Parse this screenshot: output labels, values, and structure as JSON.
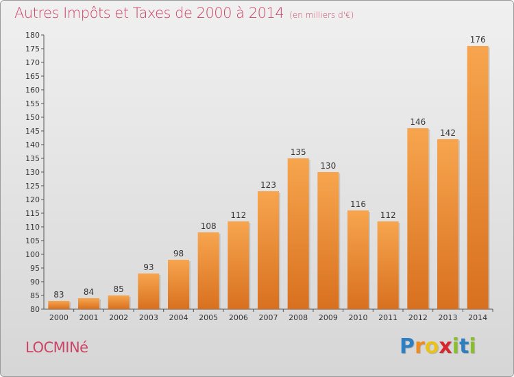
{
  "title": "Autres Impôts et Taxes de 2000 à 2014",
  "title_unit": "(en milliers d'€)",
  "commune": "LOCMINé",
  "brand": {
    "letters": [
      "P",
      "r",
      "o",
      "x",
      "i",
      "t",
      "i"
    ],
    "colors": [
      "#2e7fc1",
      "#f08a1c",
      "#e9c21a",
      "#d8262e",
      "#8bbd2f",
      "#2e7fc1",
      "#8bbd2f"
    ]
  },
  "chart_data": {
    "type": "bar",
    "categories": [
      "2000",
      "2001",
      "2002",
      "2003",
      "2004",
      "2005",
      "2006",
      "2007",
      "2008",
      "2009",
      "2010",
      "2011",
      "2012",
      "2013",
      "2014"
    ],
    "values": [
      83,
      84,
      85,
      93,
      98,
      108,
      112,
      123,
      135,
      130,
      116,
      112,
      146,
      142,
      176
    ],
    "ylim": [
      80,
      180
    ],
    "yticks": [
      80,
      85,
      90,
      95,
      100,
      105,
      110,
      115,
      120,
      125,
      130,
      135,
      140,
      145,
      150,
      155,
      160,
      165,
      170,
      175,
      180
    ],
    "grid": false,
    "bar_color_top": "#f7a54e",
    "bar_color_bottom": "#d8701f"
  }
}
